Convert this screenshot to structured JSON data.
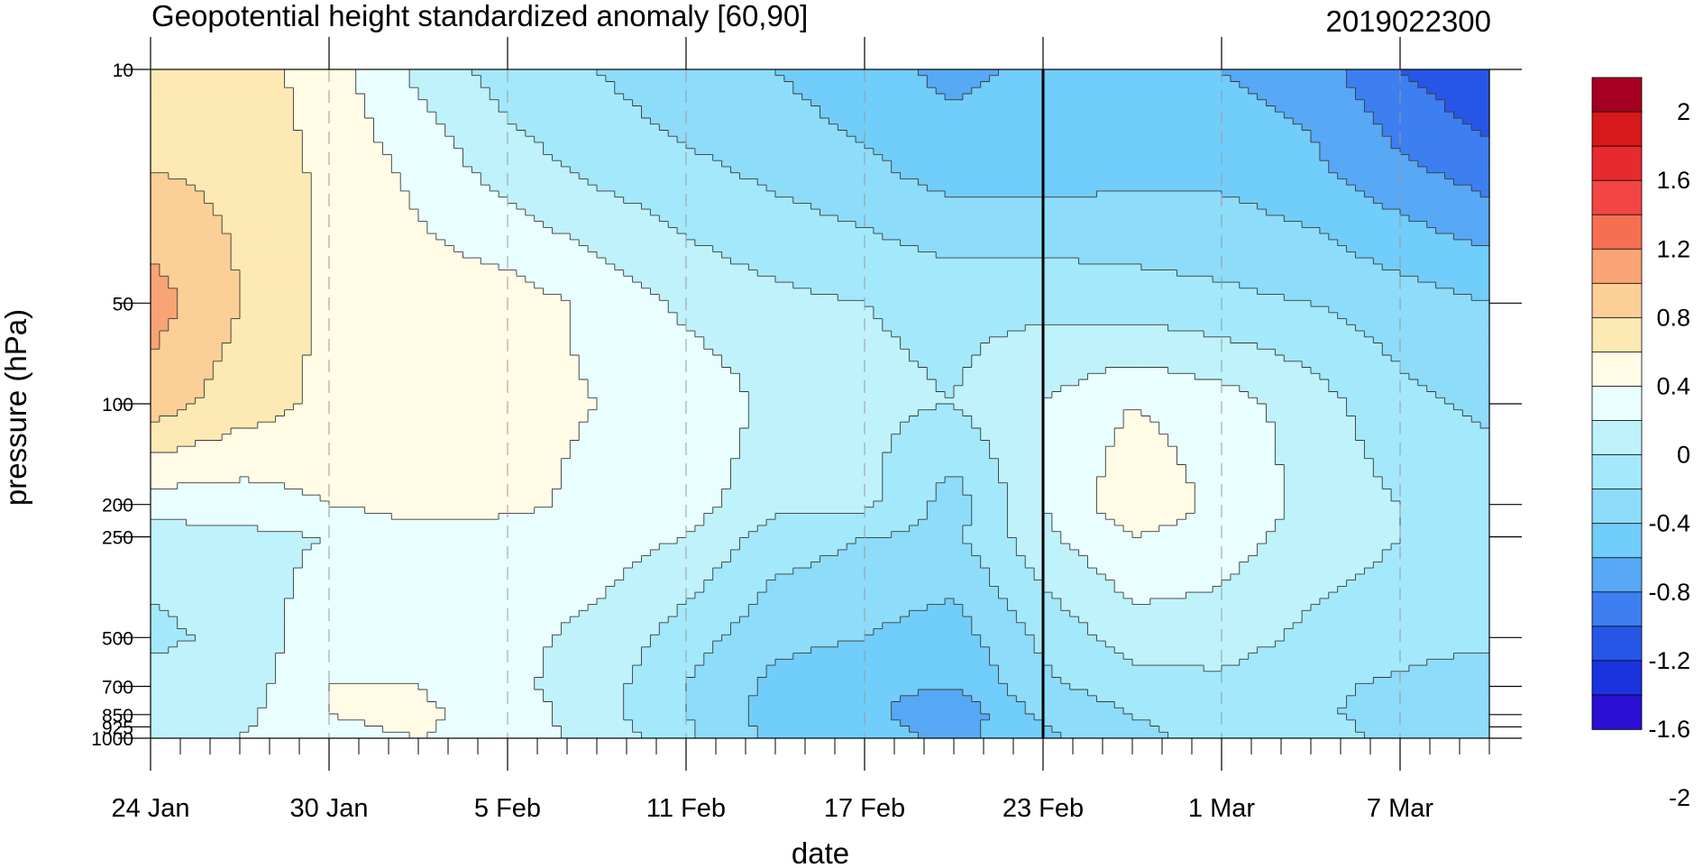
{
  "chart_data": {
    "type": "heatmap",
    "title": "Geopotential height standardized anomaly [60,90]",
    "subtitle": "2019022300",
    "xlabel": "date",
    "ylabel": "pressure (hPa)",
    "x_ticks": [
      {
        "label": "24 Jan",
        "day": 0
      },
      {
        "label": "30 Jan",
        "day": 6
      },
      {
        "label": "5 Feb",
        "day": 12
      },
      {
        "label": "11 Feb",
        "day": 18
      },
      {
        "label": "17 Feb",
        "day": 24
      },
      {
        "label": "23 Feb",
        "day": 30
      },
      {
        "label": "1 Mar",
        "day": 36
      },
      {
        "label": "7 Mar",
        "day": 42
      }
    ],
    "y_ticks": [
      {
        "label": "10",
        "p": 10
      },
      {
        "label": "50",
        "p": 50
      },
      {
        "label": "100",
        "p": 100
      },
      {
        "label": "200",
        "p": 200
      },
      {
        "label": "250",
        "p": 250
      },
      {
        "label": "500",
        "p": 500
      },
      {
        "label": "700",
        "p": 700
      },
      {
        "label": "850",
        "p": 850
      },
      {
        "label": "925",
        "p": 925
      },
      {
        "label": "1000",
        "p": 1000
      }
    ],
    "x_range_days": [
      0,
      45
    ],
    "y_range_hpa": [
      10,
      1000
    ],
    "y_scale": "log",
    "analysis_date_marker": "23 Feb",
    "colorbar": {
      "labels": [
        "2",
        "1.6",
        "1.2",
        "0.8",
        "0.4",
        "0",
        "-0.4",
        "-0.8",
        "-1.2",
        "-1.6",
        "-2"
      ],
      "levels": [
        2.2,
        2.0,
        1.8,
        1.6,
        1.4,
        1.2,
        1.0,
        0.8,
        0.6,
        0.4,
        0.2,
        0.0,
        -0.2,
        -0.4,
        -0.6,
        -0.8,
        -1.0,
        -1.2,
        -1.4,
        -1.6,
        -1.8,
        -2.0,
        -2.2
      ],
      "colors": [
        "#a50021",
        "#d7191c",
        "#e72a2e",
        "#f34544",
        "#f66f51",
        "#f8a474",
        "#fbcf96",
        "#fde9b3",
        "#fffbe5",
        "#e9ffff",
        "#bff2fb",
        "#a3e9fb",
        "#8ddcfa",
        "#71cdf9",
        "#57a8f5",
        "#3d7ff0",
        "#2756e7",
        "#1a33df",
        "#2b10d3"
      ]
    },
    "pressure_levels": [
      10,
      20,
      50,
      100,
      200,
      250,
      500,
      700,
      850,
      1000
    ],
    "days": [
      0,
      3,
      6,
      9,
      12,
      15,
      18,
      21,
      24,
      27,
      30,
      33,
      36,
      39,
      42,
      45
    ],
    "values": [
      [
        0.6,
        0.7,
        0.5,
        0.15,
        -0.1,
        -0.2,
        -0.35,
        -0.4,
        -0.55,
        -0.65,
        -0.55,
        -0.55,
        -0.6,
        -0.7,
        -1.0,
        -1.2
      ],
      [
        0.8,
        0.75,
        0.55,
        0.35,
        0.1,
        -0.05,
        -0.15,
        -0.25,
        -0.35,
        -0.5,
        -0.5,
        -0.45,
        -0.45,
        -0.55,
        -0.75,
        -0.9
      ],
      [
        1.1,
        0.8,
        0.55,
        0.5,
        0.5,
        0.35,
        0.15,
        0.05,
        0.0,
        -0.05,
        -0.05,
        -0.1,
        -0.15,
        -0.2,
        -0.3,
        -0.4
      ],
      [
        0.9,
        0.7,
        0.55,
        0.45,
        0.45,
        0.4,
        0.35,
        0.15,
        0.05,
        0.0,
        0.2,
        0.4,
        0.3,
        0.1,
        -0.15,
        -0.25
      ],
      [
        0.3,
        0.3,
        0.4,
        0.5,
        0.45,
        0.35,
        0.3,
        0.05,
        0.05,
        -0.3,
        0.2,
        0.55,
        0.35,
        0.15,
        0.0,
        -0.05
      ],
      [
        0.1,
        0.15,
        0.2,
        0.3,
        0.3,
        0.3,
        0.2,
        -0.1,
        -0.2,
        -0.25,
        0.15,
        0.4,
        0.3,
        0.1,
        0.0,
        -0.05
      ],
      [
        -0.05,
        0.05,
        0.35,
        0.35,
        0.25,
        0.15,
        -0.1,
        -0.35,
        -0.4,
        -0.5,
        -0.15,
        0.1,
        0.1,
        -0.05,
        -0.1,
        -0.15
      ],
      [
        0.1,
        0.1,
        0.4,
        0.4,
        0.25,
        0.1,
        -0.2,
        -0.45,
        -0.55,
        -0.6,
        -0.25,
        -0.1,
        -0.05,
        -0.15,
        -0.25,
        -0.35
      ],
      [
        0.2,
        0.15,
        0.4,
        0.45,
        0.3,
        0.1,
        -0.2,
        -0.5,
        -0.55,
        -0.75,
        -0.35,
        -0.2,
        -0.1,
        -0.15,
        -0.3,
        -0.35
      ],
      [
        0.2,
        0.2,
        0.35,
        0.4,
        0.3,
        0.15,
        -0.15,
        -0.45,
        -0.5,
        -0.65,
        -0.45,
        -0.25,
        -0.15,
        -0.1,
        -0.25,
        -0.3
      ]
    ]
  }
}
